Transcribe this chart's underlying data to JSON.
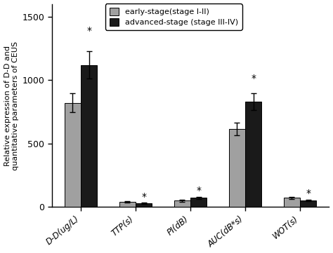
{
  "categories": [
    "D-D(ug/L)",
    "TTP(s)",
    "PI(dB)",
    "AUC(dB*s)",
    "WOT(s)"
  ],
  "early_values": [
    820,
    42,
    50,
    615,
    72
  ],
  "advanced_values": [
    1120,
    28,
    72,
    830,
    52
  ],
  "early_errors": [
    75,
    7,
    7,
    48,
    9
  ],
  "advanced_errors": [
    110,
    6,
    9,
    68,
    7
  ],
  "early_color": "#a0a0a0",
  "advanced_color": "#1a1a1a",
  "ylabel": "Relative expression of D-D and\nquantitative parameters of CEUS",
  "ylim": [
    0,
    1600
  ],
  "yticks": [
    0,
    500,
    1000,
    1500
  ],
  "legend_early": "early-stage(stage I-II)",
  "legend_advanced": "advanced-stage (stage III-IV)",
  "bar_width": 0.3,
  "figsize": [
    4.74,
    3.61
  ],
  "dpi": 100,
  "star_offsets_advanced": [
    120,
    8,
    10,
    75,
    8
  ],
  "background_color": "#ffffff"
}
